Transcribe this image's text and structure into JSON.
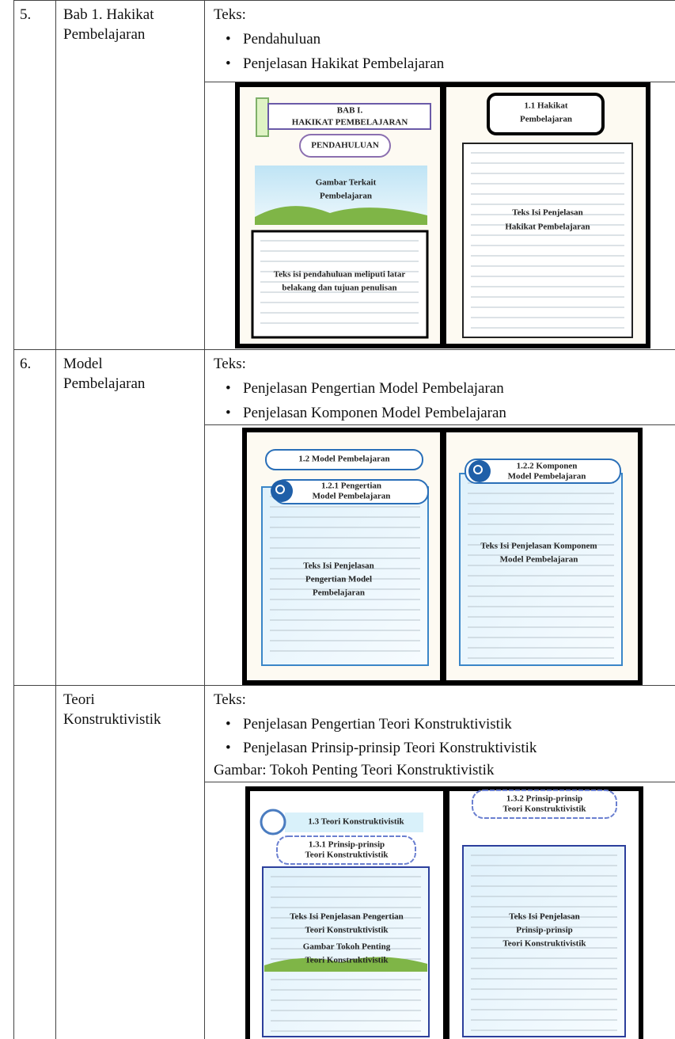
{
  "table": {
    "rows": [
      {
        "number": "5.",
        "title_lines": [
          "Bab 1. Hakikat",
          "Pembelajaran"
        ],
        "text_label": "Teks:",
        "bullets": [
          "Pendahuluan",
          "Penjelasan Hakikat Pembelajaran"
        ],
        "mockup": {
          "left": {
            "chapter": "BAB I.",
            "chapter_title": "HAKIKAT PEMBELAJARAN",
            "section": "PENDAHULUAN",
            "image_caption": [
              "Gambar Terkait",
              "Pembelajaran"
            ],
            "body": [
              "Teks isi pendahuluan meliputi latar",
              "belakang dan tujuan penulisan"
            ]
          },
          "right": {
            "heading": [
              "1.1 Hakikat",
              "Pembelajaran"
            ],
            "body": [
              "Teks Isi Penjelasan",
              "Hakikat Pembelajaran"
            ]
          }
        }
      },
      {
        "number": "6.",
        "title_lines": [
          "Model",
          "Pembelajaran"
        ],
        "text_label": "Teks:",
        "bullets": [
          "Penjelasan Pengertian Model Pembelajaran",
          "Penjelasan Komponen Model Pembelajaran"
        ],
        "mockup": {
          "left": {
            "section": "1.2  Model Pembelajaran",
            "heading": [
              "1.2.1 Pengertian",
              "Model Pembelajaran"
            ],
            "body": [
              "Teks Isi Penjelasan",
              "Pengertian Model",
              "Pembelajaran"
            ]
          },
          "right": {
            "heading": [
              "1.2.2 Komponen",
              "Model Pembelajaran"
            ],
            "body": [
              "Teks Isi Penjelasan Komponem",
              "Model Pembelajaran"
            ]
          }
        }
      },
      {
        "number": null,
        "title_lines": [
          "Teori",
          "Konstruktivistik"
        ],
        "text_label": "Teks:",
        "bullets": [
          "Penjelasan Pengertian Teori Konstruktivistik",
          "Penjelasan Prinsip-prinsip Teori Konstruktivistik"
        ],
        "extra": "Gambar: Tokoh Penting Teori Konstruktivistik",
        "mockup": {
          "left": {
            "section": "1.3 Teori Konstruktivistik",
            "heading": [
              "1.3.1 Prinsip-prinsip",
              "Teori Konstruktivistik"
            ],
            "body": [
              "Teks Isi Penjelasan Pengertian",
              "Teori Konstruktivistik"
            ],
            "image_caption": [
              "Gambar Tokoh Penting",
              "Teori Konstruktivistik"
            ]
          },
          "right": {
            "heading": [
              "1.3.2 Prinsip-prinsip",
              "Teori Konstruktivistik"
            ],
            "body": [
              "Teks Isi Penjelasan",
              "Prinsip-prinsip",
              "Teori Konstruktivistik"
            ]
          }
        }
      }
    ]
  }
}
